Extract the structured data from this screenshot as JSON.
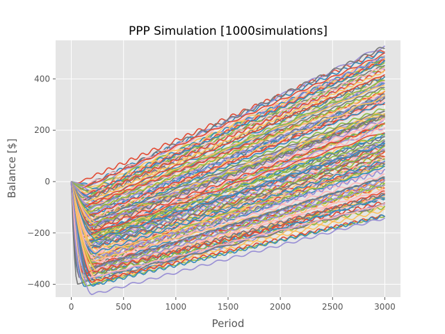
{
  "chart_data": {
    "type": "line",
    "title": "PPP Simulation [1000simulations]",
    "xlabel": "Period",
    "ylabel": "Balance [$]",
    "xlim": [
      -150,
      3150
    ],
    "ylim": [
      -450,
      550
    ],
    "xticks": [
      0,
      500,
      1000,
      1500,
      2000,
      2500,
      3000
    ],
    "yticks": [
      -400,
      -200,
      0,
      200,
      400
    ],
    "xtick_labels": [
      "0",
      "500",
      "1000",
      "1500",
      "2000",
      "2500",
      "3000"
    ],
    "ytick_labels": [
      "−400",
      "−200",
      "0",
      "200",
      "400"
    ],
    "grid": true,
    "style": "ggplot",
    "background": "#E5E5E5",
    "colors": [
      "#E24A33",
      "#348ABD",
      "#988ED5",
      "#777777",
      "#FBC15E",
      "#8EBA42",
      "#FFB5B8"
    ],
    "n_simulations": 1000,
    "series_summary": {
      "start_value": 0,
      "min_dip": -440,
      "end_upper": 510,
      "end_lower": -125
    },
    "representative_series": [
      {
        "x": [
          0,
          60,
          150,
          300,
          500,
          1000,
          1500,
          2000,
          2500,
          3000
        ],
        "y": [
          0,
          -80,
          -180,
          -210,
          -200,
          -140,
          -70,
          10,
          100,
          190
        ]
      }
    ]
  }
}
